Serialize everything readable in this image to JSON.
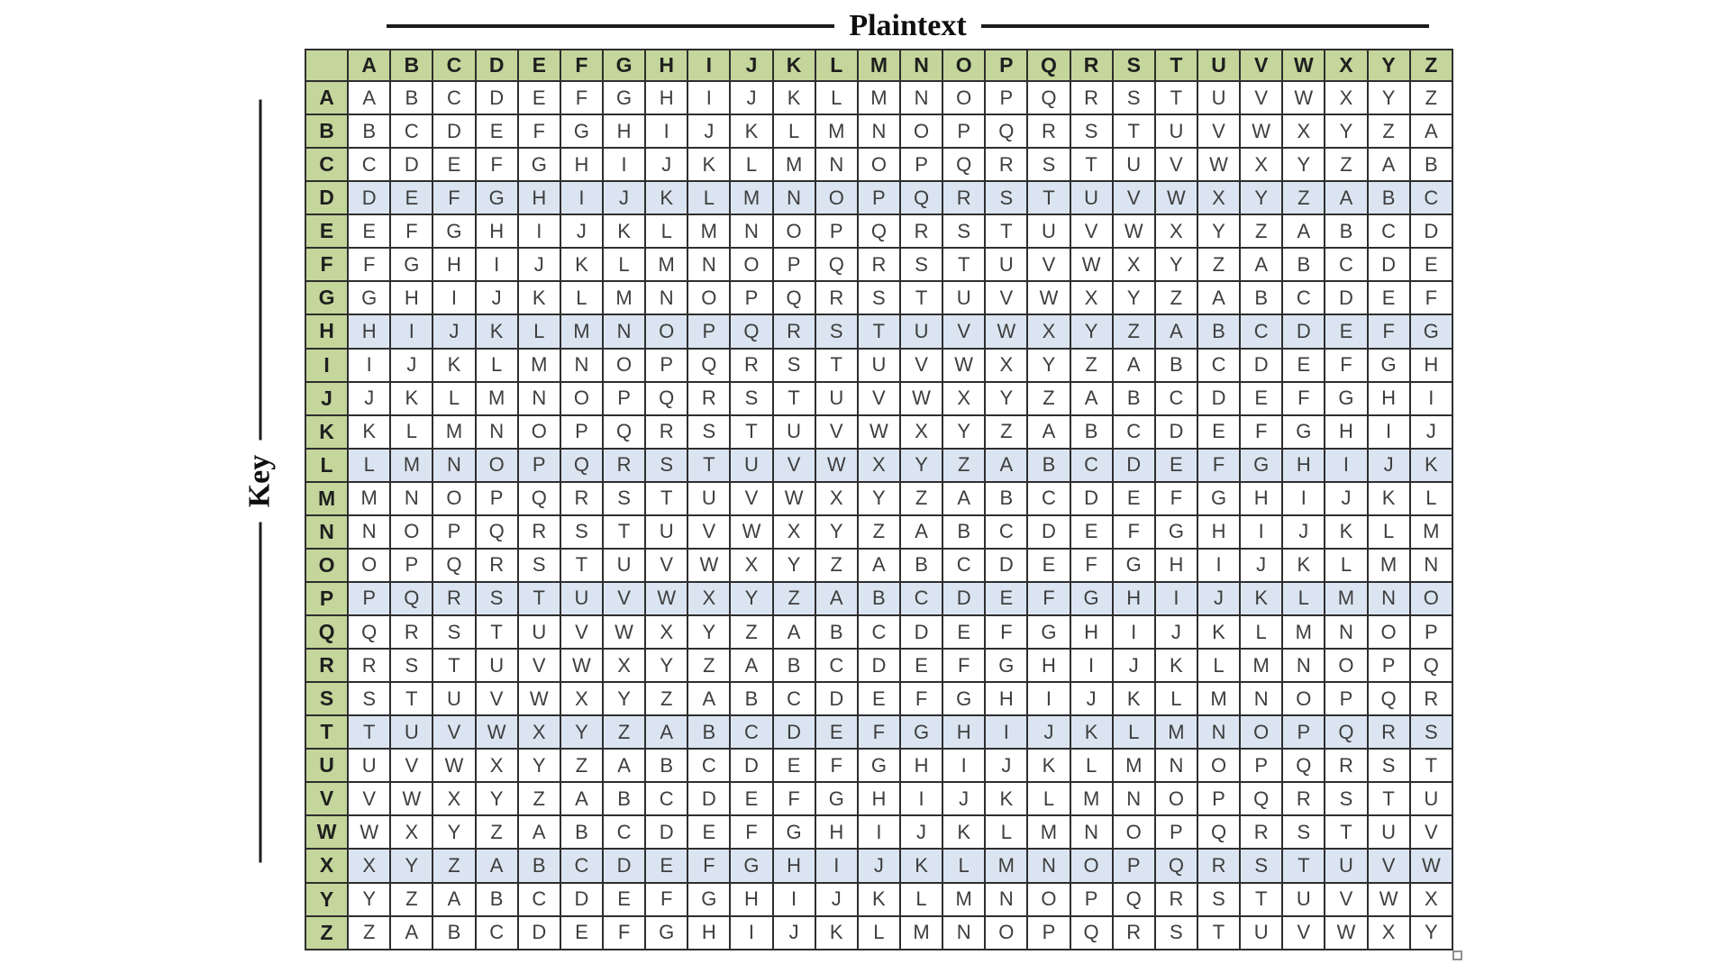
{
  "labels": {
    "plaintext_axis": "Plaintext",
    "key_axis": "Key"
  },
  "table": {
    "col_headers": [
      "A",
      "B",
      "C",
      "D",
      "E",
      "F",
      "G",
      "H",
      "I",
      "J",
      "K",
      "L",
      "M",
      "N",
      "O",
      "P",
      "Q",
      "R",
      "S",
      "T",
      "U",
      "V",
      "W",
      "X",
      "Y",
      "Z"
    ],
    "row_headers": [
      "A",
      "B",
      "C",
      "D",
      "E",
      "F",
      "G",
      "H",
      "I",
      "J",
      "K",
      "L",
      "M",
      "N",
      "O",
      "P",
      "Q",
      "R",
      "S",
      "T",
      "U",
      "V",
      "W",
      "X",
      "Y",
      "Z"
    ],
    "rows": [
      "ABCDEFGHIJKLMNOPQRSTUVWXYZ",
      "BCDEFGHIJKLMNOPQRSTUVWXYZA",
      "CDEFGHIJKLMNOPQRSTUVWXYZAB",
      "DEFGHIJKLMNOPQRSTUVWXYZABC",
      "EFGHIJKLMNOPQRSTUVWXYZABCD",
      "FGHIJKLMNOPQRSTUVWXYZABCDE",
      "GHIJKLMNOPQRSTUVWXYZABCDEF",
      "HIJKLMNOPQRSTUVWXYZABCDEFG",
      "IJKLMNOPQRSTUVWXYZABCDEFGH",
      "JKLMNOPQRSTUVWXYZABCDEFGHI",
      "KLMNOPQRSTUVWXYZABCDEFGHIJ",
      "LMNOPQRSTUVWXYZABCDEFGHIJK",
      "MNOPQRSTUVWXYZABCDEFGHIJKL",
      "NOPQRSTUVWXYZABCDEFGHIJKLM",
      "OPQRSTUVWXYZABCDEFGHIJKLMN",
      "PQRSTUVWXYZABCDEFGHIJKLMNO",
      "QRSTUVWXYZABCDEFGHIJKLMNOP",
      "RSTUVWXYZABCDEFGHIJKLMNOPQ",
      "STUVWXYZABCDEFGHIJKLMNOPQR",
      "TUVWXYZABCDEFGHIJKLMNOPQRS",
      "UVWXYZABCDEFGHIJKLMNOPQRST",
      "VWXYZABCDEFGHIJKLMNOPQRSTU",
      "WXYZABCDEFGHIJKLMNOPQRSTUV",
      "XYZABCDEFGHIJKLMNOPQRSTUVW",
      "YZABCDEFGHIJKLMNOPQRSTUVWX",
      "ZABCDEFGHIJKLMNOPQRSTUVWXY"
    ],
    "highlighted_rows": [
      "D",
      "H",
      "L",
      "P",
      "T",
      "X"
    ]
  },
  "colors": {
    "header_fill": "#c4d69b",
    "highlight_fill": "#dbe5f1",
    "grid_line": "#2e2e2e",
    "title_line": "#1c1c1c",
    "body_text": "#3e3e3e",
    "header_text": "#1f1f1f"
  }
}
